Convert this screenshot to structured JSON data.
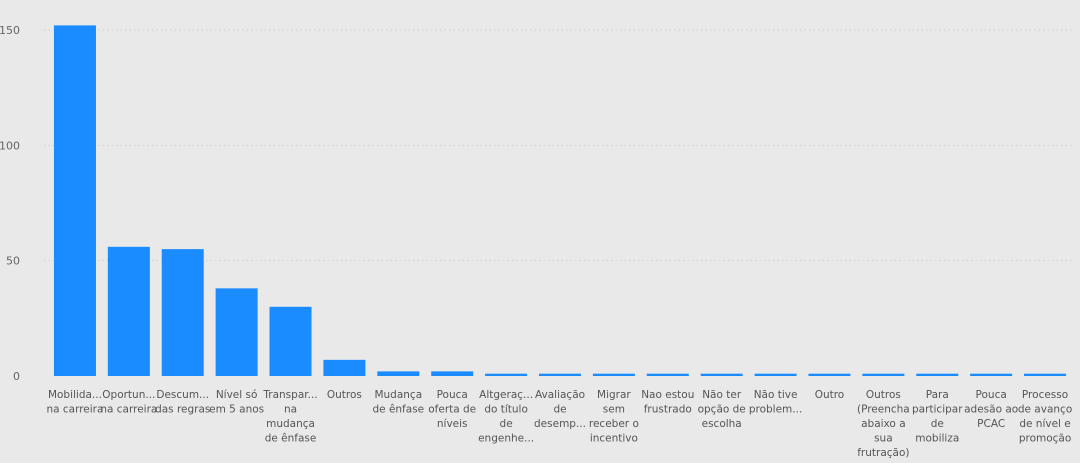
{
  "chart_data": {
    "type": "bar",
    "title": "",
    "xlabel": "",
    "ylabel": "",
    "ylim": [
      0,
      160
    ],
    "yticks": [
      0,
      50,
      100,
      150
    ],
    "grid": true,
    "bar_color": "#1a8cff",
    "background": "#e9e9e9",
    "categories": [
      [
        "Mobilida...",
        "na carreira"
      ],
      [
        "Oportun...",
        "na carreira"
      ],
      [
        "Descum...",
        "das regras"
      ],
      [
        "Nível só",
        "em 5 anos"
      ],
      [
        "Transpar...",
        "na",
        "mudança",
        "de ênfase"
      ],
      [
        "Outros"
      ],
      [
        "Mudança",
        "de ênfase"
      ],
      [
        "Pouca",
        "oferta de",
        "níveis"
      ],
      [
        "Altgeraç...",
        "do título",
        "de",
        "engenhe..."
      ],
      [
        "Avaliação",
        "de",
        "desemp..."
      ],
      [
        "Migrar",
        "sem",
        "receber o",
        "incentivo"
      ],
      [
        "Nao estou",
        "frustrado"
      ],
      [
        "Não ter",
        "opção de",
        "escolha"
      ],
      [
        "Não tive",
        "problem..."
      ],
      [
        "Outro"
      ],
      [
        "Outros",
        "(Preencha",
        "abaixo a",
        "sua",
        "frutração)"
      ],
      [
        "Para",
        "participar",
        "de",
        "mobiliza"
      ],
      [
        "Pouca",
        "adesão ao",
        "PCAC"
      ],
      [
        "Processo",
        "de avanço",
        "de nível e",
        "promoção"
      ]
    ],
    "values": [
      152,
      56,
      55,
      38,
      30,
      7,
      2,
      2,
      1,
      1,
      1,
      1,
      1,
      1,
      1,
      1,
      1,
      1,
      1
    ]
  }
}
